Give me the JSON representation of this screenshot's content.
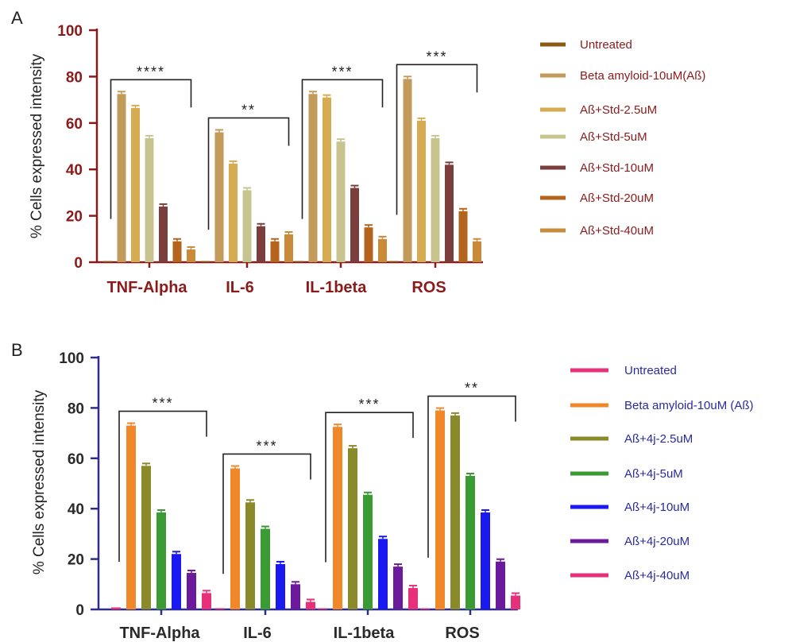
{
  "chart_data": [
    {
      "type": "bar",
      "panel": "A",
      "ylabel": "% Cells expressed intensity",
      "ylim": [
        0,
        100
      ],
      "yticks": [
        0,
        20,
        40,
        60,
        80,
        100
      ],
      "categories": [
        "TNF-Alpha",
        "IL-6",
        "IL-1beta",
        "ROS"
      ],
      "significance": [
        "****",
        "**",
        "***",
        "***"
      ],
      "axis_color": "#8b1a1a",
      "label_color": "#8b1a1a",
      "legend_position": "right",
      "series": [
        {
          "name": "Untreated",
          "color": "#8a5a14",
          "values": [
            0.5,
            0.3,
            0.3,
            0.3
          ]
        },
        {
          "name": "Beta amyloid-10uM(Aß)",
          "color": "#c29a5a",
          "values": [
            72.5,
            56,
            72.5,
            79
          ]
        },
        {
          "name": "Aß+Std-2.5uM",
          "color": "#d6ab52",
          "values": [
            66.5,
            42.5,
            71,
            61
          ]
        },
        {
          "name": "Aß+Std-5uM",
          "color": "#c8c490",
          "values": [
            53.5,
            31,
            52,
            53.5
          ]
        },
        {
          "name": "Aß+Std-10uM",
          "color": "#7a3e3c",
          "values": [
            24,
            15.5,
            32,
            42
          ]
        },
        {
          "name": "Aß+Std-20uM",
          "color": "#b4641c",
          "values": [
            9,
            9,
            15,
            22
          ]
        },
        {
          "name": "Aß+Std-40uM",
          "color": "#c98a3a",
          "values": [
            5.5,
            12,
            10,
            9
          ]
        }
      ]
    },
    {
      "type": "bar",
      "panel": "B",
      "ylabel": "% Cells expressed intensity",
      "ylim": [
        0,
        100
      ],
      "yticks": [
        0,
        20,
        40,
        60,
        80,
        100
      ],
      "categories": [
        "TNF-Alpha",
        "IL-6",
        "IL-1beta",
        "ROS"
      ],
      "significance": [
        "***",
        "***",
        "***",
        "**"
      ],
      "axis_color": "#2e2e8a",
      "label_color": "#2a2a2a",
      "legend_position": "right",
      "series": [
        {
          "name": "Untreated",
          "color": "#e6307a",
          "values": [
            0.8,
            0.5,
            0.3,
            0.3
          ]
        },
        {
          "name": "Beta amyloid-10uM (Aß)",
          "color": "#f0882a",
          "values": [
            73,
            56,
            72.5,
            79
          ]
        },
        {
          "name": "Aß+4j-2.5uM",
          "color": "#8a8a2a",
          "values": [
            57,
            42.5,
            64,
            77
          ]
        },
        {
          "name": "Aß+4j-5uM",
          "color": "#3a9a34",
          "values": [
            38.5,
            32,
            45.5,
            53
          ]
        },
        {
          "name": "Aß+4j-10uM",
          "color": "#1a1af0",
          "values": [
            22,
            18,
            28,
            38.5
          ]
        },
        {
          "name": "Aß+4j-20uM",
          "color": "#6a1a9a",
          "values": [
            14.5,
            10,
            17,
            19
          ]
        },
        {
          "name": "Aß+4j-40uM",
          "color": "#e6307a",
          "values": [
            6.5,
            3,
            8.5,
            5.5
          ]
        }
      ]
    }
  ]
}
